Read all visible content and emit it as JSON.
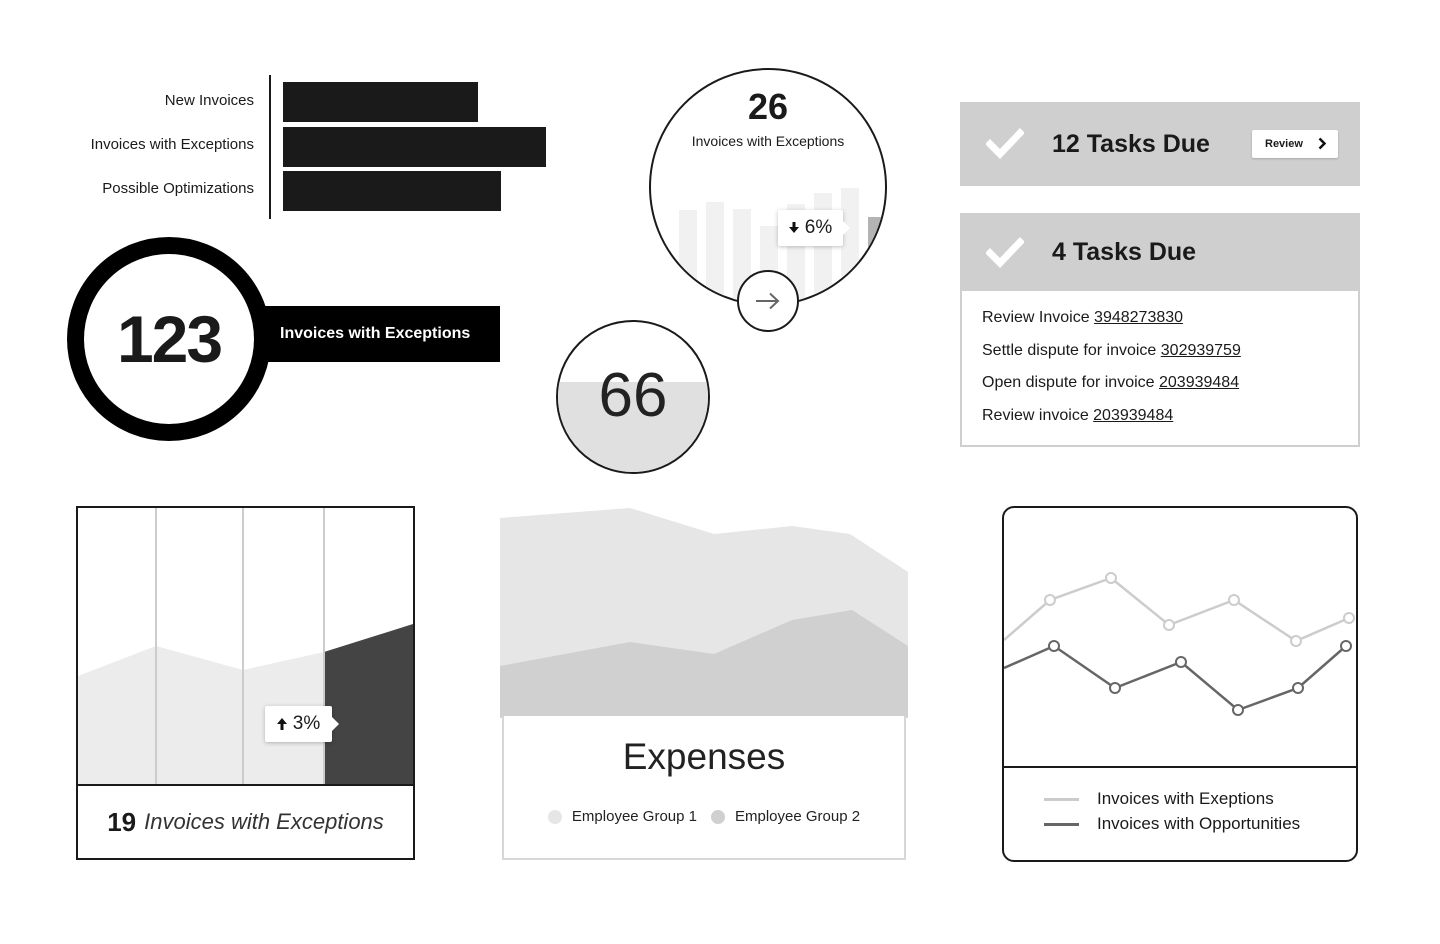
{
  "bar_widget": {
    "items": [
      {
        "label": "New Invoices",
        "value": 0.74
      },
      {
        "label": "Invoices with Exceptions",
        "value": 1.0
      },
      {
        "label": "Possible Optimizations",
        "value": 0.83
      }
    ]
  },
  "ring_widget": {
    "number": "123",
    "label": "Invoices with Exceptions"
  },
  "circle_widget": {
    "number": "26",
    "label": "Invoices with Exceptions",
    "change": "6%",
    "direction": "down",
    "bars": [
      0.55,
      0.6,
      0.56,
      0.46,
      0.59,
      0.65,
      0.68,
      0.51
    ],
    "highlight_color": "#b3b3b3",
    "arrow_icon": "arrow-right-icon"
  },
  "gauge_widget": {
    "number": "66",
    "fill": 0.6
  },
  "tasks_card_1": {
    "title": "12 Tasks Due",
    "button_label": "Review"
  },
  "tasks_card_2": {
    "title": "4 Tasks Due",
    "items": [
      {
        "text": "Review Invoice ",
        "link": "3948273830"
      },
      {
        "text": "Settle dispute for invoice ",
        "link": "302939759"
      },
      {
        "text": "Open dispute for invoice ",
        "link": "203939484"
      },
      {
        "text": "Review invoice ",
        "link": "203939484"
      }
    ]
  },
  "exceptions_card": {
    "count": "19",
    "label": "Invoices with Exceptions",
    "change": "3%",
    "direction": "up",
    "accent_color": "#444444"
  },
  "expenses_card": {
    "title": "Expenses",
    "legend": [
      {
        "name": "Employee Group 1",
        "color": "#e6e6e6"
      },
      {
        "name": "Employee Group 2",
        "color": "#d0d0d0"
      }
    ]
  },
  "line_card": {
    "legend": [
      {
        "name": "Invoices with Exeptions",
        "color": "#cccccc"
      },
      {
        "name": "Invoices with Opportunities",
        "color": "#666666"
      }
    ]
  }
}
